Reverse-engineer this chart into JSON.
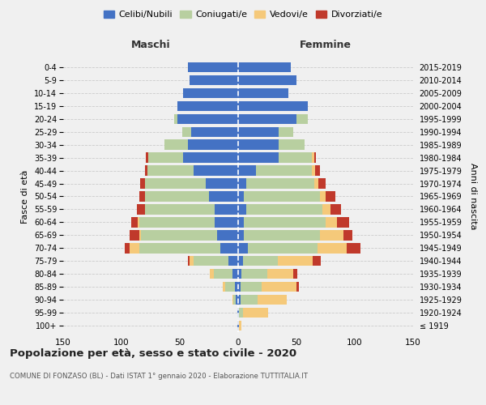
{
  "age_groups": [
    "100+",
    "95-99",
    "90-94",
    "85-89",
    "80-84",
    "75-79",
    "70-74",
    "65-69",
    "60-64",
    "55-59",
    "50-54",
    "45-49",
    "40-44",
    "35-39",
    "30-34",
    "25-29",
    "20-24",
    "15-19",
    "10-14",
    "5-9",
    "0-4"
  ],
  "birth_years": [
    "≤ 1919",
    "1920-1924",
    "1925-1929",
    "1930-1934",
    "1935-1939",
    "1940-1944",
    "1945-1949",
    "1950-1954",
    "1955-1959",
    "1960-1964",
    "1965-1969",
    "1970-1974",
    "1975-1979",
    "1980-1984",
    "1985-1989",
    "1990-1994",
    "1995-1999",
    "2000-2004",
    "2005-2009",
    "2010-2014",
    "2015-2019"
  ],
  "males": {
    "celibe": [
      1,
      1,
      2,
      3,
      5,
      8,
      15,
      18,
      20,
      20,
      25,
      28,
      38,
      47,
      43,
      40,
      52,
      52,
      47,
      42,
      43
    ],
    "coniugato": [
      0,
      0,
      2,
      8,
      16,
      30,
      70,
      65,
      65,
      60,
      55,
      52,
      40,
      30,
      20,
      8,
      3,
      0,
      0,
      0,
      0
    ],
    "vedovo": [
      0,
      0,
      1,
      2,
      3,
      4,
      8,
      2,
      1,
      0,
      0,
      0,
      0,
      0,
      0,
      0,
      0,
      0,
      0,
      0,
      0
    ],
    "divorziato": [
      0,
      0,
      0,
      0,
      0,
      1,
      4,
      8,
      6,
      7,
      5,
      4,
      2,
      2,
      0,
      0,
      0,
      0,
      0,
      0,
      0
    ]
  },
  "females": {
    "nubile": [
      1,
      1,
      2,
      2,
      3,
      4,
      8,
      5,
      5,
      7,
      5,
      7,
      15,
      35,
      35,
      35,
      50,
      60,
      43,
      50,
      45
    ],
    "coniugata": [
      0,
      3,
      15,
      18,
      22,
      30,
      60,
      65,
      70,
      65,
      65,
      58,
      48,
      28,
      22,
      12,
      10,
      0,
      0,
      0,
      0
    ],
    "vedova": [
      2,
      22,
      25,
      30,
      22,
      30,
      25,
      20,
      10,
      7,
      5,
      4,
      3,
      2,
      0,
      0,
      0,
      0,
      0,
      0,
      0
    ],
    "divorziata": [
      0,
      0,
      0,
      2,
      4,
      7,
      12,
      8,
      10,
      9,
      8,
      6,
      4,
      2,
      0,
      0,
      0,
      0,
      0,
      0,
      0
    ]
  },
  "colors": {
    "celibe": "#4472c4",
    "coniugato": "#b8cfa0",
    "vedovo": "#f5c97a",
    "divorziato": "#c0392b"
  },
  "title": "Popolazione per età, sesso e stato civile - 2020",
  "subtitle": "COMUNE DI FONZASO (BL) - Dati ISTAT 1° gennaio 2020 - Elaborazione TUTTITALIA.IT",
  "xlabel_left": "Maschi",
  "xlabel_right": "Femmine",
  "ylabel_left": "Fasce di età",
  "ylabel_right": "Anni di nascita",
  "xlim": 150,
  "legend_labels": [
    "Celibi/Nubili",
    "Coniugati/e",
    "Vedovi/e",
    "Divorziati/e"
  ],
  "bg_color": "#f0f0f0"
}
